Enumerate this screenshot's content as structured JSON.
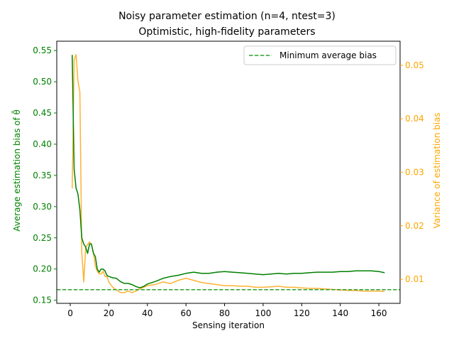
{
  "chart_data": {
    "type": "line",
    "title": "Noisy parameter estimation (n=4, ntest=3)",
    "subtitle": "Optimistic, high-fidelity parameters",
    "xlabel": "Sensing iteration",
    "ylabel_left": "Average estimation bias of θ̄",
    "ylabel_right": "Variance of estimation bias",
    "xlim": [
      -7,
      171
    ],
    "ylim_left": [
      0.145,
      0.565
    ],
    "ylim_right": [
      0.0055,
      0.0545
    ],
    "x_ticks": [
      0,
      20,
      40,
      60,
      80,
      100,
      120,
      140,
      160
    ],
    "y_left_ticks": [
      0.15,
      0.2,
      0.25,
      0.3,
      0.35,
      0.4,
      0.45,
      0.5,
      0.55
    ],
    "y_left_tick_labels": [
      "0.15",
      "0.20",
      "0.25",
      "0.30",
      "0.35",
      "0.40",
      "0.45",
      "0.50",
      "0.55"
    ],
    "y_right_ticks": [
      0.01,
      0.02,
      0.03,
      0.04,
      0.05
    ],
    "y_right_tick_labels": [
      "0.01",
      "0.02",
      "0.03",
      "0.04",
      "0.05"
    ],
    "grid": false,
    "legend_position": "top-right",
    "colors": {
      "bias": "#008000",
      "variance": "#FFB133",
      "min_line": "#2ca02c",
      "left_axis_text": "#008000",
      "right_axis_text": "#FFA500"
    },
    "min_line": {
      "name": "Minimum average bias",
      "y": 0.167
    },
    "series": [
      {
        "axis": "left",
        "x": [
          1,
          2,
          3,
          4,
          5,
          6,
          7,
          8,
          9,
          10,
          11,
          12,
          13,
          14,
          15,
          16,
          17,
          18,
          19,
          20,
          22,
          24,
          26,
          28,
          30,
          32,
          34,
          36,
          38,
          40,
          44,
          48,
          52,
          56,
          60,
          64,
          68,
          72,
          76,
          80,
          84,
          88,
          92,
          96,
          100,
          104,
          108,
          112,
          116,
          120,
          124,
          128,
          132,
          136,
          140,
          144,
          148,
          152,
          156,
          160,
          163
        ],
        "y": [
          0.543,
          0.36,
          0.33,
          0.32,
          0.295,
          0.25,
          0.24,
          0.235,
          0.225,
          0.24,
          0.24,
          0.225,
          0.22,
          0.2,
          0.195,
          0.2,
          0.2,
          0.197,
          0.19,
          0.188,
          0.186,
          0.185,
          0.18,
          0.177,
          0.177,
          0.175,
          0.172,
          0.17,
          0.172,
          0.176,
          0.18,
          0.185,
          0.188,
          0.19,
          0.193,
          0.195,
          0.193,
          0.193,
          0.195,
          0.196,
          0.195,
          0.194,
          0.193,
          0.192,
          0.191,
          0.192,
          0.193,
          0.192,
          0.193,
          0.193,
          0.194,
          0.195,
          0.195,
          0.195,
          0.196,
          0.196,
          0.197,
          0.197,
          0.197,
          0.196,
          0.194
        ]
      },
      {
        "axis": "right",
        "x": [
          1,
          2,
          3,
          4,
          5,
          6,
          7,
          8,
          9,
          10,
          11,
          12,
          13,
          14,
          15,
          16,
          17,
          18,
          19,
          20,
          22,
          24,
          26,
          28,
          30,
          32,
          34,
          36,
          38,
          40,
          44,
          48,
          52,
          56,
          60,
          64,
          68,
          72,
          76,
          80,
          84,
          88,
          92,
          96,
          100,
          104,
          108,
          112,
          116,
          120,
          124,
          128,
          132,
          136,
          140,
          144,
          148,
          152,
          156,
          160,
          163
        ],
        "y": [
          0.027,
          0.051,
          0.052,
          0.047,
          0.045,
          0.015,
          0.0095,
          0.016,
          0.0165,
          0.017,
          0.0165,
          0.015,
          0.0125,
          0.0115,
          0.011,
          0.011,
          0.0115,
          0.0105,
          0.0105,
          0.0095,
          0.0085,
          0.008,
          0.0075,
          0.0075,
          0.0078,
          0.0075,
          0.0078,
          0.0082,
          0.0085,
          0.0088,
          0.009,
          0.0095,
          0.0092,
          0.0098,
          0.0102,
          0.0098,
          0.0094,
          0.0092,
          0.009,
          0.0088,
          0.0088,
          0.0087,
          0.0087,
          0.0085,
          0.0085,
          0.0086,
          0.0087,
          0.0085,
          0.0085,
          0.0084,
          0.0083,
          0.0083,
          0.0082,
          0.0081,
          0.008,
          0.0079,
          0.0079,
          0.0078,
          0.0078,
          0.0078,
          0.0077
        ]
      }
    ]
  }
}
